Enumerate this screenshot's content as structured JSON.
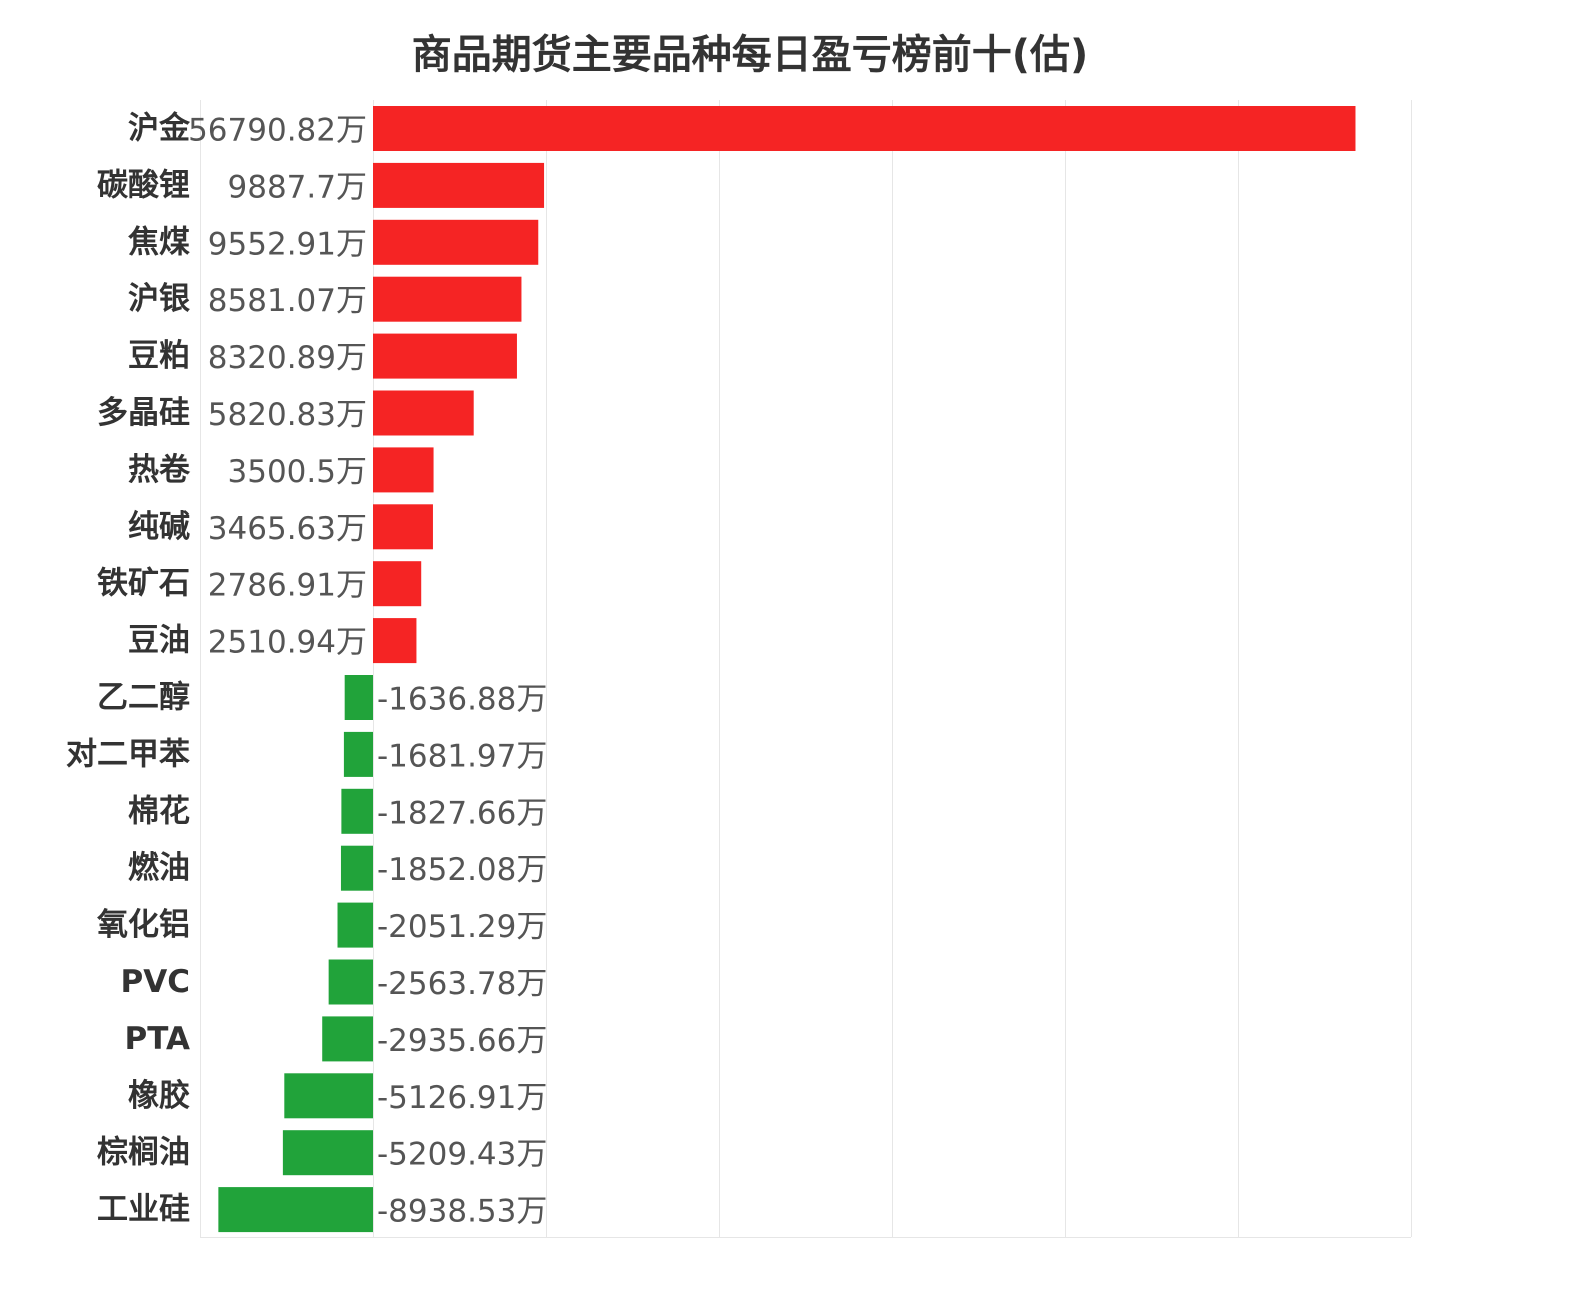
{
  "chart_data": {
    "type": "bar",
    "orientation": "horizontal",
    "title": "商品期货主要品种每日盈亏榜前十(估)",
    "xlabel": "",
    "ylabel": "",
    "value_suffix": "万",
    "xlim": [
      -10000,
      60000
    ],
    "grid": true,
    "colors": {
      "positive": "#f52424",
      "negative": "#21a33a",
      "category_text": "#333333",
      "value_text": "#555555",
      "grid": "#e6e6e6"
    },
    "categories": [
      "沪金",
      "碳酸锂",
      "焦煤",
      "沪银",
      "豆粕",
      "多晶硅",
      "热卷",
      "纯碱",
      "铁矿石",
      "豆油",
      "乙二醇",
      "对二甲苯",
      "棉花",
      "燃油",
      "氧化铝",
      "PVC",
      "PTA",
      "橡胶",
      "棕榈油",
      "工业硅"
    ],
    "values": [
      56790.82,
      9887.7,
      9552.91,
      8581.07,
      8320.89,
      5820.83,
      3500.5,
      3465.63,
      2786.91,
      2510.94,
      -1636.88,
      -1681.97,
      -1827.66,
      -1852.08,
      -2051.29,
      -2563.78,
      -2935.66,
      -5126.91,
      -5209.43,
      -8938.53
    ],
    "value_labels": [
      "56790.82万",
      "9887.7万",
      "9552.91万",
      "8581.07万",
      "8320.89万",
      "5820.83万",
      "3500.5万",
      "3465.63万",
      "2786.91万",
      "2510.94万",
      "-1636.88万",
      "-1681.97万",
      "-1827.66万",
      "-1852.08万",
      "-2051.29万",
      "-2563.78万",
      "-2935.66万",
      "-5126.91万",
      "-5209.43万",
      "-8938.53万"
    ]
  }
}
